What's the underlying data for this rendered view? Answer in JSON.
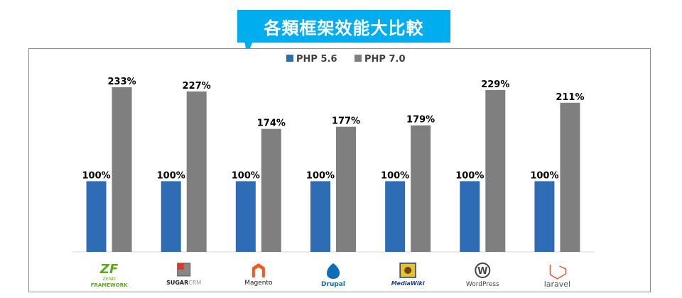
{
  "title": "各類框架效能大比較",
  "chart_data": {
    "type": "bar",
    "categories": [
      "ZEND FRAMEWORK",
      "SUGARCRM",
      "Magento",
      "Drupal",
      "MediaWiki",
      "WordPress",
      "laravel"
    ],
    "series": [
      {
        "name": "PHP 5.6",
        "values": [
          100,
          100,
          100,
          100,
          100,
          100,
          100
        ],
        "labels": [
          "100%",
          "100%",
          "100%",
          "100%",
          "100%",
          "100%",
          "100%"
        ]
      },
      {
        "name": "PHP 7.0",
        "values": [
          233,
          227,
          174,
          177,
          179,
          229,
          211
        ],
        "labels": [
          "233%",
          "227%",
          "174%",
          "177%",
          "179%",
          "229%",
          "211%"
        ]
      }
    ],
    "colors": [
      "#2e6cb5",
      "#7f7f7f"
    ],
    "ylim": [
      0,
      260
    ],
    "grid": false,
    "legend": "top-center",
    "logos": [
      {
        "mark": "ZF",
        "text": [
          "ZEND",
          "FRAMEWORK"
        ],
        "color": "#5cab1f"
      },
      {
        "text": [
          "SUGAR",
          "CRM"
        ],
        "color": "#222222"
      },
      {
        "text": [
          "Magento"
        ],
        "color": "#222222",
        "accent": "#ef5b24"
      },
      {
        "text": [
          "Drupal"
        ],
        "color": "#0f6cb6"
      },
      {
        "text": [
          "MediaWiki"
        ],
        "color": "#1a3f8a"
      },
      {
        "text": [
          "WordPress"
        ],
        "color": "#464646"
      },
      {
        "text": [
          "laravel"
        ],
        "color": "#555555",
        "accent": "#f05340"
      }
    ]
  }
}
